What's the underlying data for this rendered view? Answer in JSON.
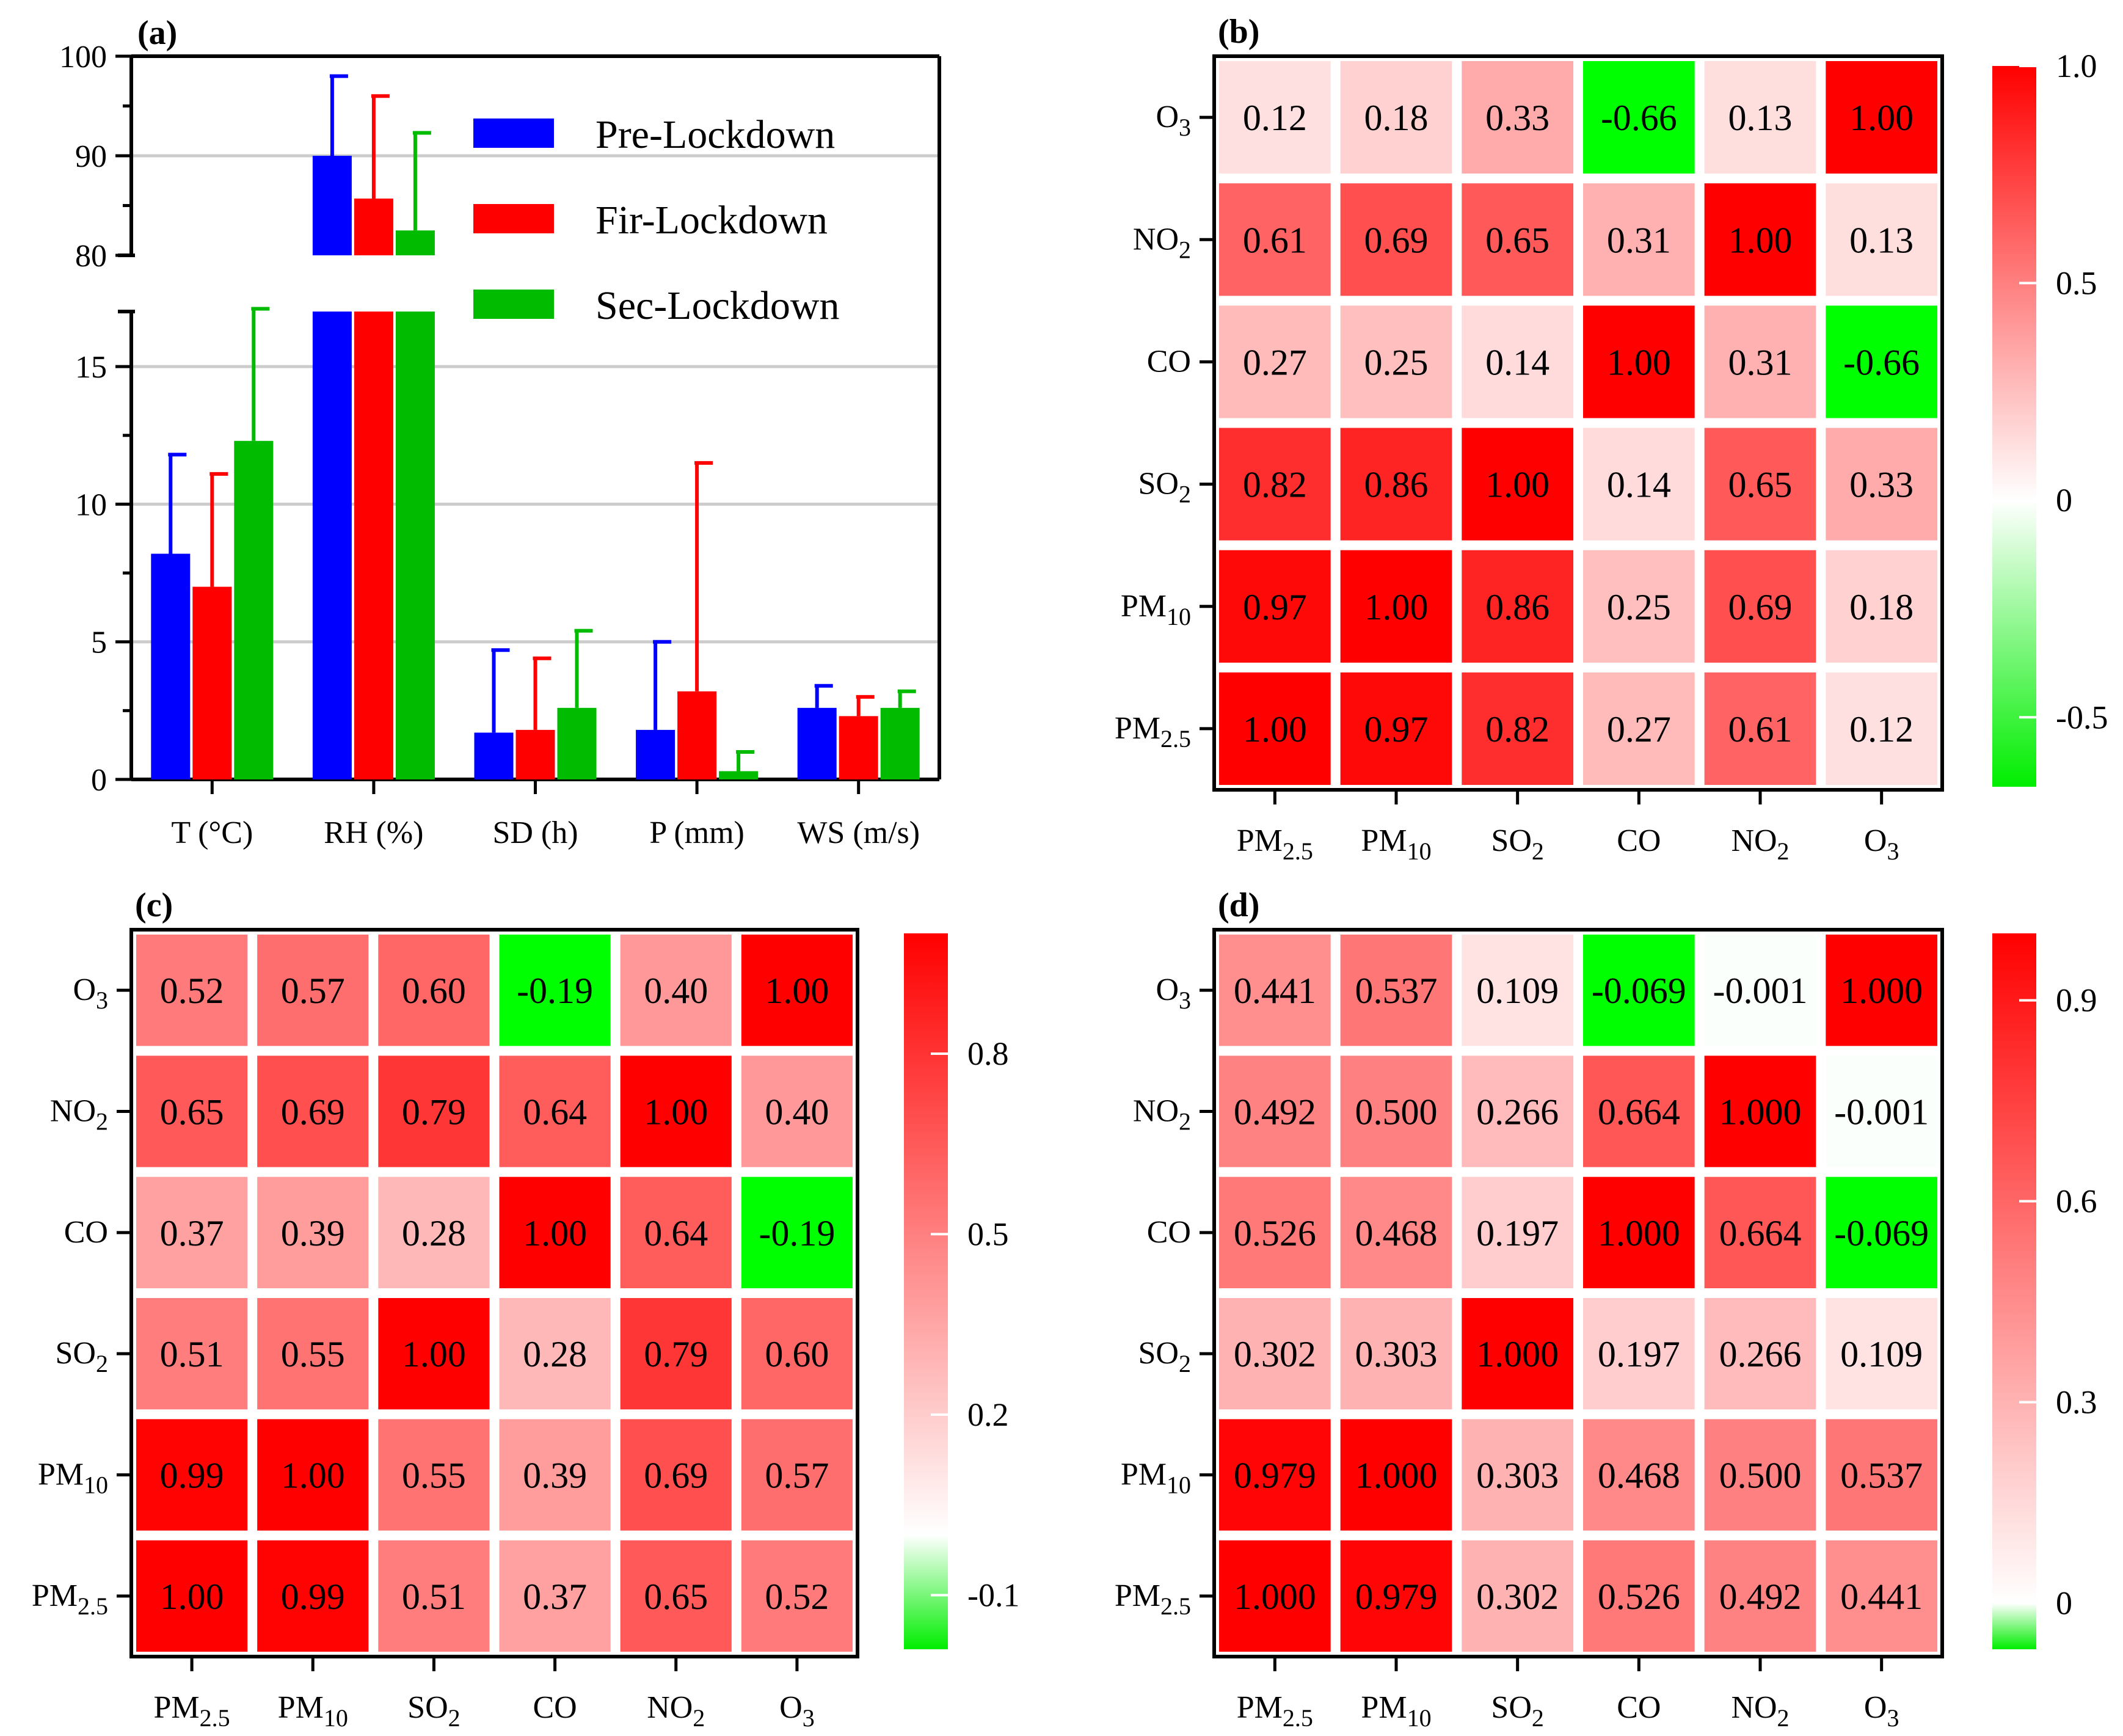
{
  "chart_data": [
    {
      "id": "a",
      "panel_label": "(a)",
      "type": "bar",
      "categories": [
        "T (°C)",
        "RH (%)",
        "SD (h)",
        "P (mm)",
        "WS (m/s)"
      ],
      "series": [
        {
          "name": "Pre-Lockdown",
          "color": "#0000ff",
          "values": [
            8.2,
            90.0,
            1.7,
            1.8,
            2.6
          ],
          "errors": [
            3.6,
            8.0,
            3.0,
            3.2,
            0.8
          ]
        },
        {
          "name": "Fir-Lockdown",
          "color": "#ff0000",
          "values": [
            7.0,
            85.7,
            1.8,
            3.2,
            2.3
          ],
          "errors": [
            4.1,
            10.3,
            2.6,
            8.3,
            0.7
          ]
        },
        {
          "name": "Sec-Lockdown",
          "color": "#00bb00",
          "values": [
            12.3,
            82.5,
            2.6,
            0.3,
            2.6
          ],
          "errors": [
            4.8,
            9.8,
            2.8,
            0.7,
            0.6
          ]
        }
      ],
      "y_axis_segments": [
        {
          "ylim": [
            0,
            17
          ],
          "ticks": [
            0,
            5,
            10,
            15
          ]
        },
        {
          "ylim": [
            80,
            100
          ],
          "ticks": [
            80,
            90,
            100
          ]
        }
      ],
      "y_broken": true,
      "grid": "horizontal",
      "legend": "top-right"
    },
    {
      "id": "b",
      "panel_label": "(b)",
      "type": "heatmap",
      "labels": [
        "PM2.5",
        "PM10",
        "SO2",
        "CO",
        "NO2",
        "O3"
      ],
      "matrix": [
        [
          1.0,
          0.97,
          0.82,
          0.27,
          0.61,
          0.12
        ],
        [
          0.97,
          1.0,
          0.86,
          0.25,
          0.69,
          0.18
        ],
        [
          0.82,
          0.86,
          1.0,
          0.14,
          0.65,
          0.33
        ],
        [
          0.27,
          0.25,
          0.14,
          1.0,
          0.31,
          -0.66
        ],
        [
          0.61,
          0.69,
          0.65,
          0.31,
          1.0,
          0.13
        ],
        [
          0.12,
          0.18,
          0.33,
          -0.66,
          0.13,
          1.0
        ]
      ],
      "decimals": 2,
      "colorbar": {
        "min": -0.66,
        "max": 1.0,
        "ticks": [
          -0.5,
          0,
          0.5,
          1.0
        ],
        "tick_labels": [
          "-0.5",
          "0",
          "0.5",
          "1.0"
        ]
      }
    },
    {
      "id": "c",
      "panel_label": "(c)",
      "type": "heatmap",
      "labels": [
        "PM2.5",
        "PM10",
        "SO2",
        "CO",
        "NO2",
        "O3"
      ],
      "matrix": [
        [
          1.0,
          0.99,
          0.51,
          0.37,
          0.65,
          0.52
        ],
        [
          0.99,
          1.0,
          0.55,
          0.39,
          0.69,
          0.57
        ],
        [
          0.51,
          0.55,
          1.0,
          0.28,
          0.79,
          0.6
        ],
        [
          0.37,
          0.39,
          0.28,
          1.0,
          0.64,
          -0.19
        ],
        [
          0.65,
          0.69,
          0.79,
          0.64,
          1.0,
          0.4
        ],
        [
          0.52,
          0.57,
          0.6,
          -0.19,
          0.4,
          1.0
        ]
      ],
      "decimals": 2,
      "colorbar": {
        "min": -0.19,
        "max": 1.0,
        "ticks": [
          -0.1,
          0.2,
          0.5,
          0.8
        ],
        "tick_labels": [
          "-0.1",
          "0.2",
          "0.5",
          "0.8"
        ]
      }
    },
    {
      "id": "d",
      "panel_label": "(d)",
      "type": "heatmap",
      "labels": [
        "PM2.5",
        "PM10",
        "SO2",
        "CO",
        "NO2",
        "O3"
      ],
      "matrix": [
        [
          1.0,
          0.979,
          0.302,
          0.526,
          0.492,
          0.441
        ],
        [
          0.979,
          1.0,
          0.303,
          0.468,
          0.5,
          0.537
        ],
        [
          0.302,
          0.303,
          1.0,
          0.197,
          0.266,
          0.109
        ],
        [
          0.526,
          0.468,
          0.197,
          1.0,
          0.664,
          -0.069
        ],
        [
          0.492,
          0.5,
          0.266,
          0.664,
          1.0,
          -0.001
        ],
        [
          0.441,
          0.537,
          0.109,
          -0.069,
          -0.001,
          1.0
        ]
      ],
      "decimals": 3,
      "colorbar": {
        "min": -0.069,
        "max": 1.0,
        "ticks": [
          0,
          0.3,
          0.6,
          0.9
        ],
        "tick_labels": [
          "0",
          "0.3",
          "0.6",
          "0.9"
        ]
      }
    }
  ]
}
